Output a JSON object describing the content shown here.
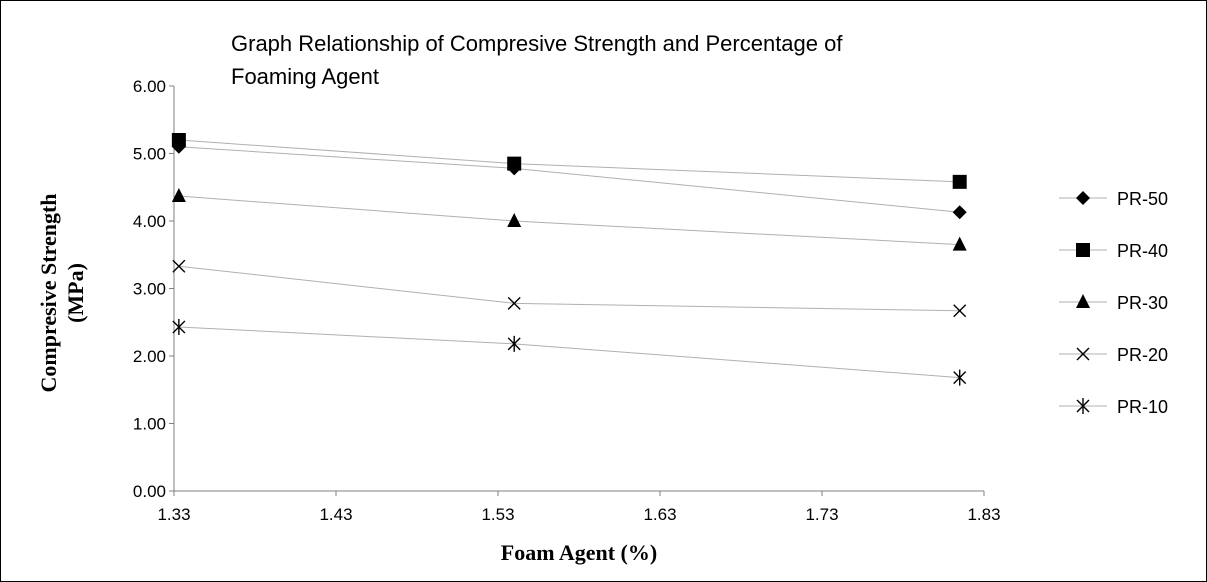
{
  "chart_data": {
    "type": "line",
    "title_line1": "Graph  Relationship of Compresive Strength and Percentage of",
    "title_line2": "Foaming Agent",
    "xlabel": "Foam Agent (%)",
    "ylabel_line1": "Compresive Strength",
    "ylabel_line2": "(MPa)",
    "xlim": [
      1.33,
      1.83
    ],
    "ylim": [
      0,
      6
    ],
    "x_ticks": [
      "1.33",
      "1.43",
      "1.53",
      "1.63",
      "1.73",
      "1.83"
    ],
    "y_ticks": [
      "0.00",
      "1.00",
      "2.00",
      "3.00",
      "4.00",
      "5.00",
      "6.00"
    ],
    "grid": false,
    "legend_position": "right",
    "line_color": "#b0b0b0",
    "marker_color": "#000000",
    "x": [
      1.333,
      1.54,
      1.815
    ],
    "series": [
      {
        "name": "PR-50",
        "marker": "diamond",
        "values": [
          5.1,
          4.78,
          4.13
        ]
      },
      {
        "name": "PR-40",
        "marker": "square",
        "values": [
          5.2,
          4.85,
          4.58
        ]
      },
      {
        "name": "PR-30",
        "marker": "triangle",
        "values": [
          4.37,
          4.0,
          3.65
        ]
      },
      {
        "name": "PR-20",
        "marker": "x",
        "values": [
          3.33,
          2.78,
          2.67
        ]
      },
      {
        "name": "PR-10",
        "marker": "asterisk",
        "values": [
          2.43,
          2.18,
          1.68
        ]
      }
    ]
  }
}
